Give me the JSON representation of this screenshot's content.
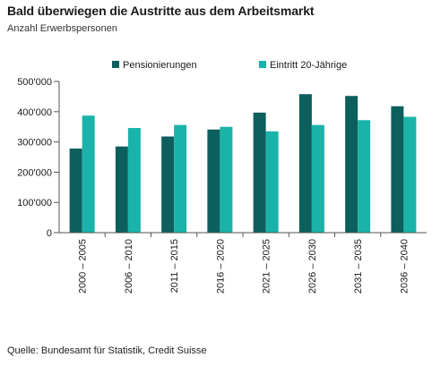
{
  "header": {
    "title": "Bald überwiegen die Austritte aus dem Arbeitsmarkt",
    "subtitle": "Anzahl Erwerbspersonen"
  },
  "footer": {
    "source": "Quelle: Bundesamt für Statistik, Credit Suisse"
  },
  "colors": {
    "series_1": "#0d5f5e",
    "series_2": "#19b3a9"
  },
  "chart_data": {
    "type": "bar",
    "title": "Bald überwiegen die Austritte aus dem Arbeitsmarkt",
    "subtitle": "Anzahl Erwerbspersonen",
    "xlabel": "",
    "ylabel": "",
    "categories": [
      "2000 – 2005",
      "2006 – 2010",
      "2011 – 2015",
      "2016 – 2020",
      "2021 – 2025",
      "2026 – 2030",
      "2031 – 2035",
      "2036 – 2040"
    ],
    "series": [
      {
        "name": "Pensionierungen",
        "values": [
          278000,
          285000,
          318000,
          341000,
          397000,
          458000,
          452000,
          418000
        ]
      },
      {
        "name": "Eintritt 20-Jährige",
        "values": [
          387000,
          346000,
          356000,
          350000,
          335000,
          356000,
          372000,
          383000
        ]
      }
    ],
    "ylim": [
      0,
      500000
    ],
    "yticks": [
      0,
      100000,
      200000,
      300000,
      400000,
      500000
    ],
    "ytick_labels": [
      "0",
      "100'000",
      "200'000",
      "300'000",
      "400'000",
      "500'000"
    ],
    "grid": false,
    "legend_position": "top"
  }
}
